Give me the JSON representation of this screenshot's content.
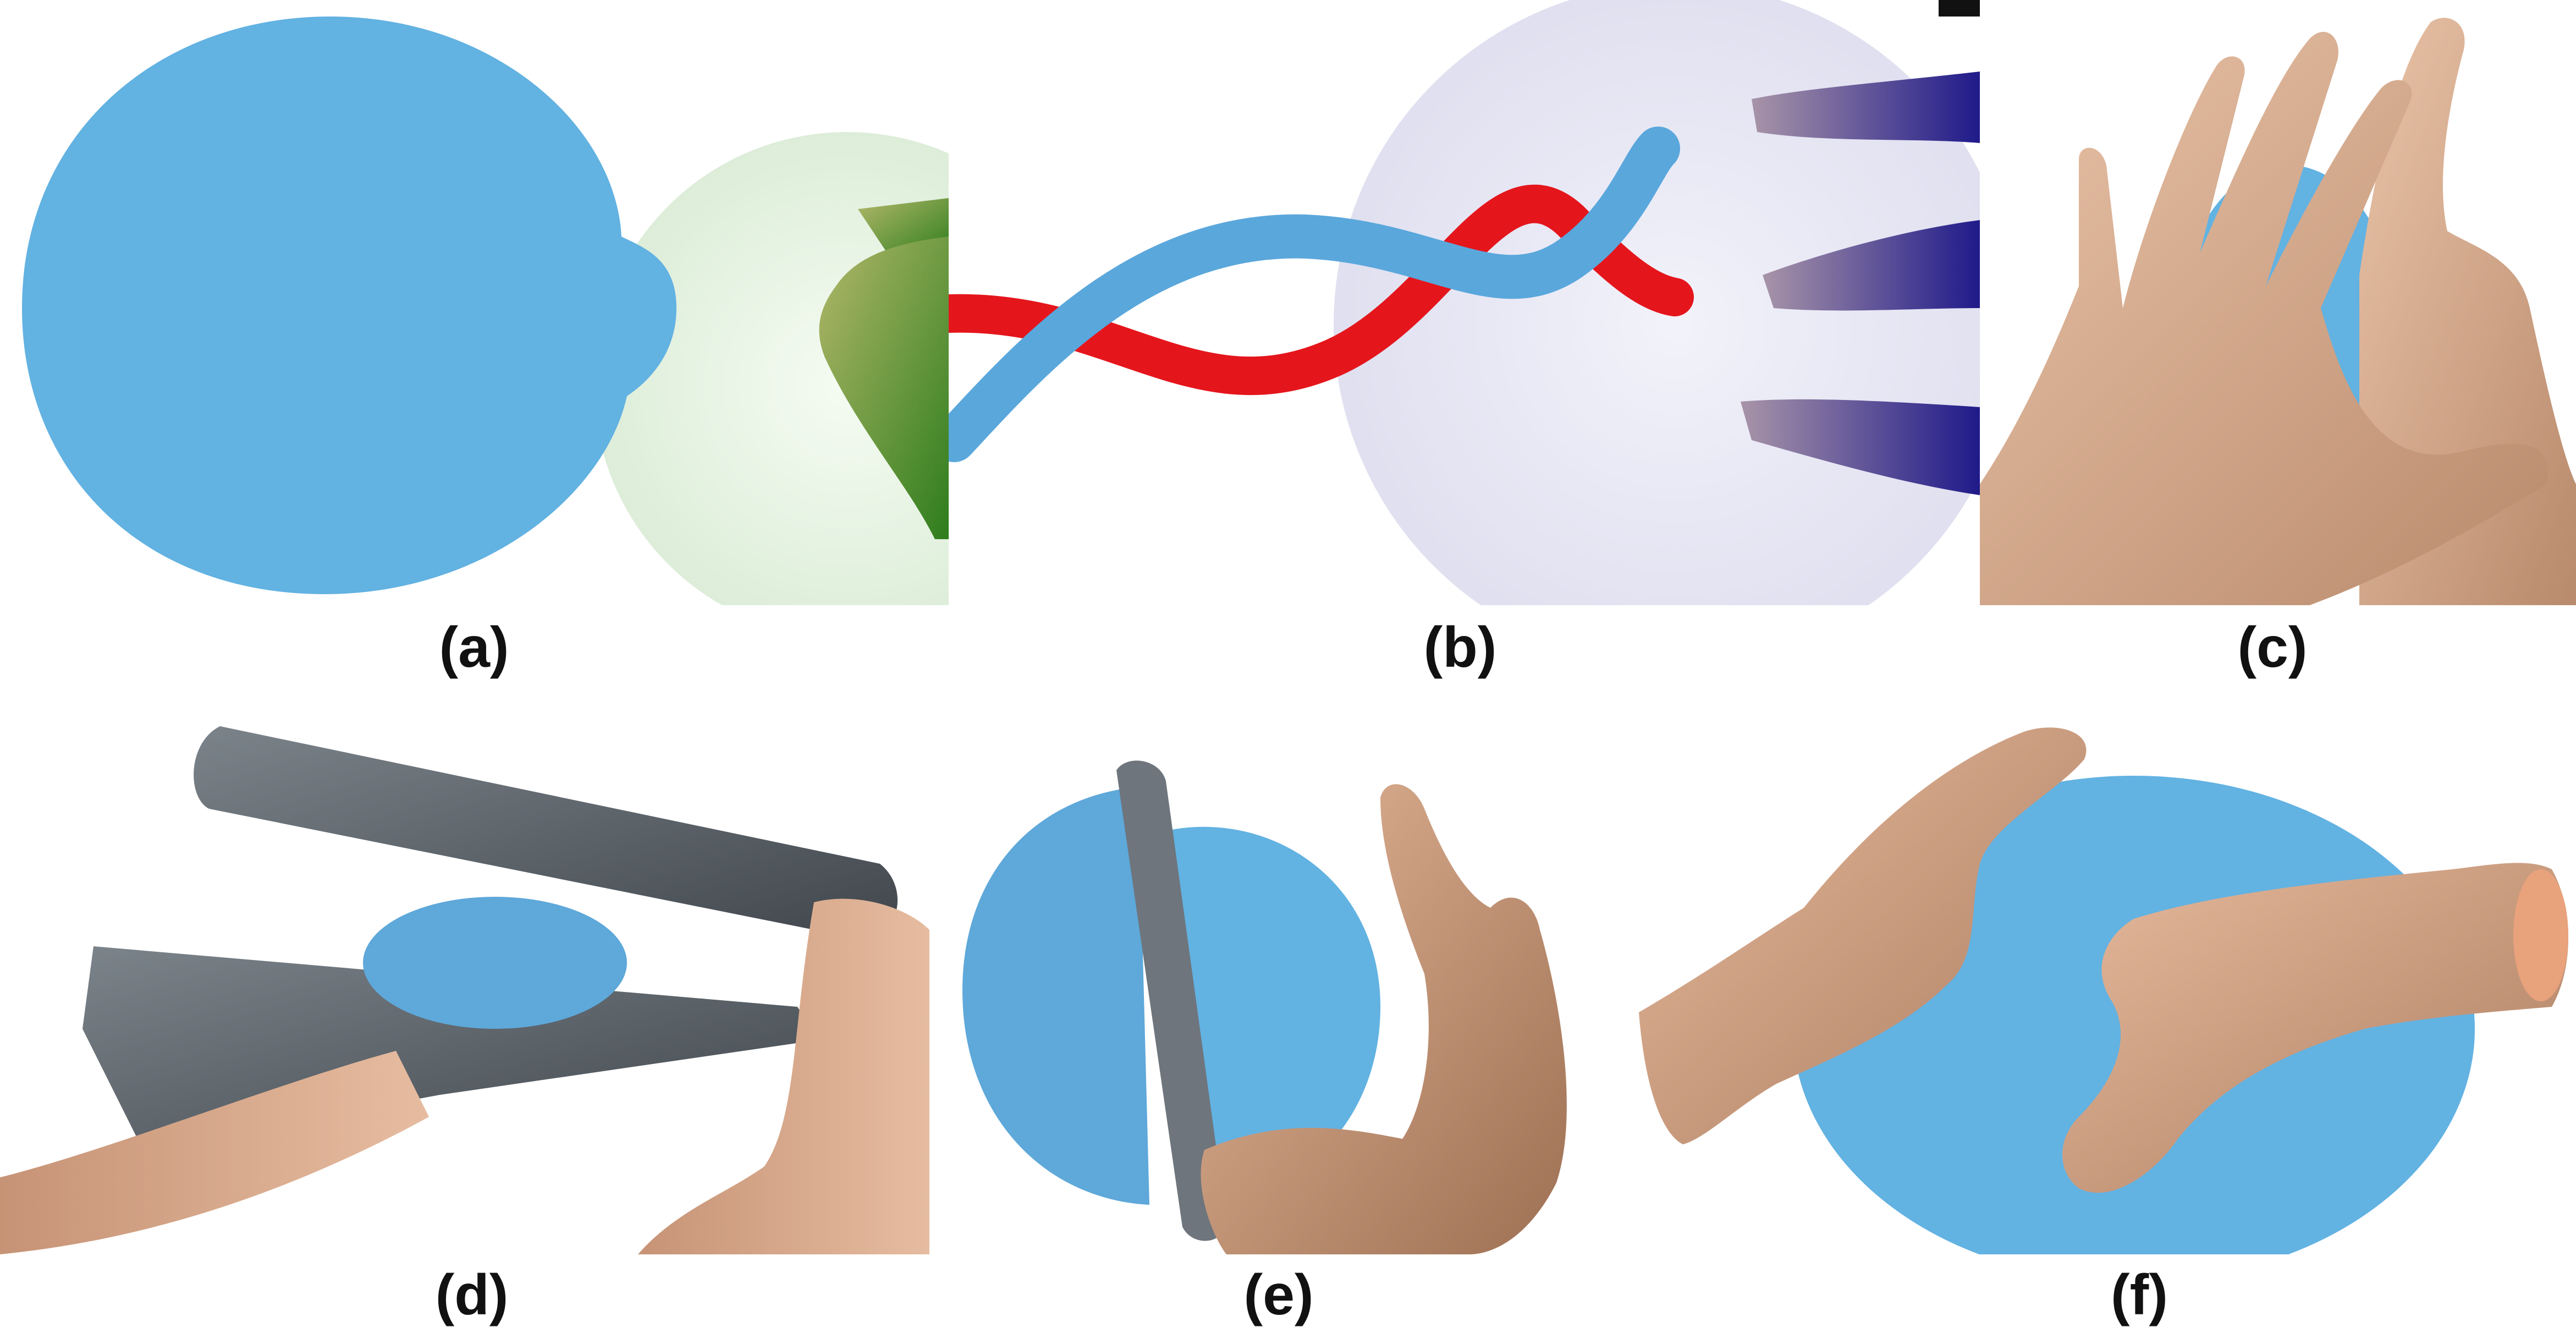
{
  "figure": {
    "panels": [
      {
        "id": "a",
        "label": "(a)",
        "content": "blue clay ball being pinched by hand, translucent green sphere"
      },
      {
        "id": "b",
        "label": "(b)",
        "content": "blue and red clay strands twisted, translucent purple sphere with hand"
      },
      {
        "id": "c",
        "label": "(c)",
        "content": "two hands pressing blue clay"
      },
      {
        "id": "d",
        "label": "(d)",
        "content": "blue clay pressed between two gray plates by hands"
      },
      {
        "id": "e",
        "label": "(e)",
        "content": "blue clay ball cut by gray rod, hand nearby"
      },
      {
        "id": "f",
        "label": "(f)",
        "content": "two hands squeezing blue clay ball"
      }
    ]
  },
  "colors": {
    "clay_blue": "#62b2e2",
    "clay_red": "#e4161c",
    "skin": "#d8a787",
    "plate_gray": "#5a6168",
    "sphere_green": "#e3f3df",
    "sphere_purple": "#e7e7f4"
  }
}
